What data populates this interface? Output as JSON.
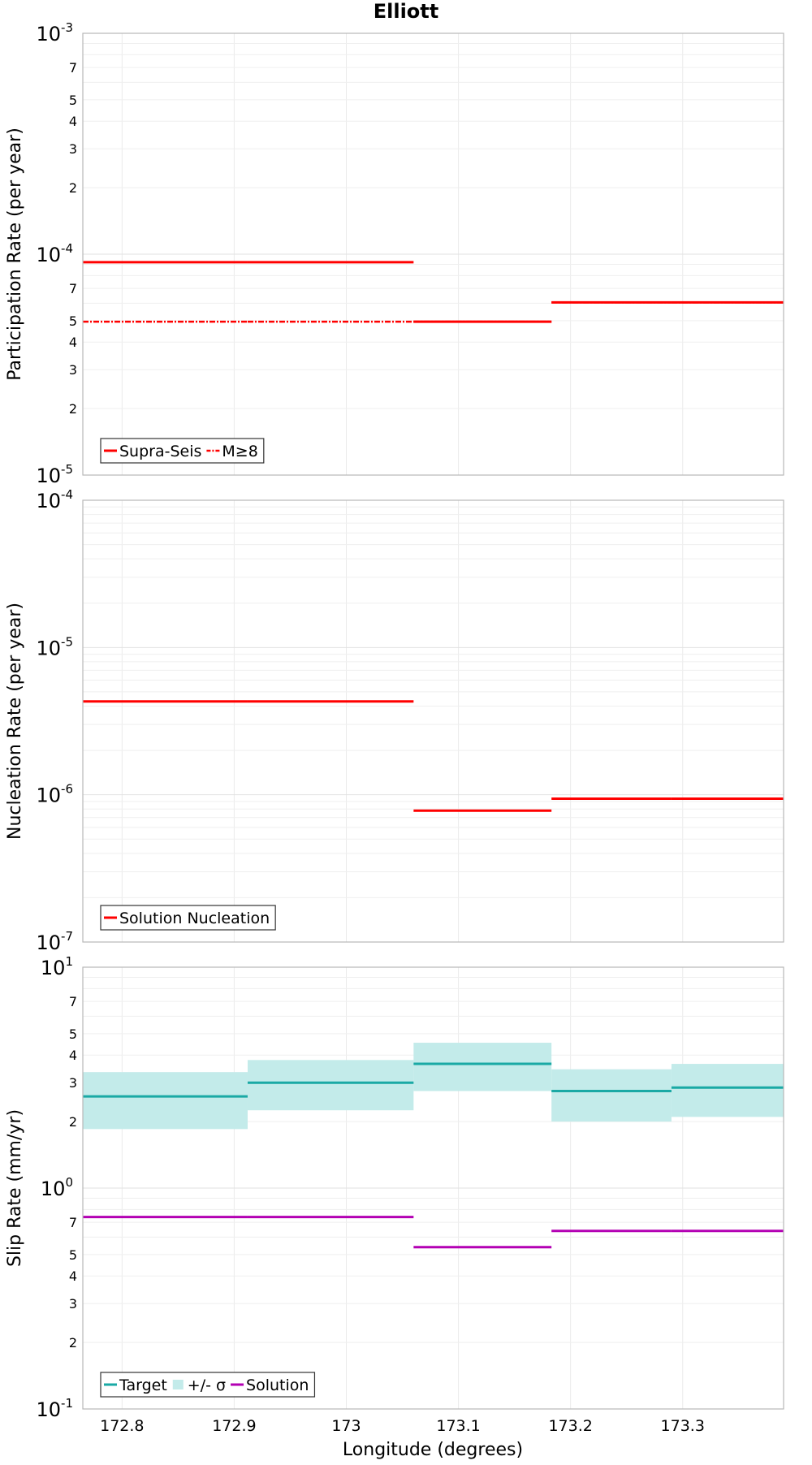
{
  "chart_data": {
    "title": "Elliott",
    "xlabel": "Longitude (degrees)",
    "xlim": [
      172.765,
      173.39
    ],
    "x_ticks": [
      "172.8",
      "172.9",
      "173",
      "173.1",
      "173.2",
      "173.3"
    ],
    "x_tick_values": [
      172.8,
      172.9,
      173.0,
      173.1,
      173.2,
      173.3
    ],
    "grid": true,
    "legend_position": "bottom-left",
    "panels": [
      {
        "type": "line",
        "ylabel": "Participation Rate (per year)",
        "yscale": "log",
        "ylim": [
          1e-05,
          0.001
        ],
        "y_major_ticks": [
          {
            "base": "10",
            "exp": "-5",
            "value": 1e-05
          },
          {
            "base": "10",
            "exp": "-4",
            "value": 0.0001
          },
          {
            "base": "10",
            "exp": "-3",
            "value": 0.001
          }
        ],
        "y_minor_labels": [
          "2",
          "3",
          "4",
          "5",
          "7"
        ],
        "series": [
          {
            "name": "Supra-Seis",
            "style": "solid",
            "color": "#ff0000",
            "segments": [
              {
                "x0": 172.765,
                "x1": 172.912,
                "y": 9.2e-05
              },
              {
                "x0": 172.912,
                "x1": 173.06,
                "y": 9.2e-05
              },
              {
                "x0": 173.06,
                "x1": 173.183,
                "y": 4.95e-05
              },
              {
                "x0": 173.183,
                "x1": 173.29,
                "y": 6.05e-05
              },
              {
                "x0": 173.29,
                "x1": 173.39,
                "y": 6.05e-05
              }
            ]
          },
          {
            "name": "M≥8",
            "style": "dash-dot",
            "color": "#ff0000",
            "segments": [
              {
                "x0": 172.765,
                "x1": 172.912,
                "y": 4.95e-05
              },
              {
                "x0": 172.912,
                "x1": 173.06,
                "y": 4.95e-05
              },
              {
                "x0": 173.06,
                "x1": 173.183,
                "y": 4.95e-05
              },
              {
                "x0": 173.183,
                "x1": 173.29,
                "y": 6.05e-05
              },
              {
                "x0": 173.29,
                "x1": 173.39,
                "y": 6.05e-05
              }
            ]
          }
        ]
      },
      {
        "type": "line",
        "ylabel": "Nucleation Rate (per year)",
        "yscale": "log",
        "ylim": [
          1e-07,
          0.0001
        ],
        "y_major_ticks": [
          {
            "base": "10",
            "exp": "-7",
            "value": 1e-07
          },
          {
            "base": "10",
            "exp": "-6",
            "value": 1e-06
          },
          {
            "base": "10",
            "exp": "-5",
            "value": 1e-05
          },
          {
            "base": "10",
            "exp": "-4",
            "value": 0.0001
          }
        ],
        "y_minor_labels": [],
        "series": [
          {
            "name": "Solution Nucleation",
            "style": "solid",
            "color": "#ff0000",
            "segments": [
              {
                "x0": 172.765,
                "x1": 172.912,
                "y": 4.3e-06
              },
              {
                "x0": 172.912,
                "x1": 173.06,
                "y": 4.3e-06
              },
              {
                "x0": 173.06,
                "x1": 173.183,
                "y": 7.8e-07
              },
              {
                "x0": 173.183,
                "x1": 173.29,
                "y": 9.4e-07
              },
              {
                "x0": 173.29,
                "x1": 173.39,
                "y": 9.4e-07
              }
            ]
          }
        ]
      },
      {
        "type": "line",
        "ylabel": "Slip Rate (mm/yr)",
        "yscale": "log",
        "ylim": [
          0.1,
          10
        ],
        "y_major_ticks": [
          {
            "base": "10",
            "exp": "-1",
            "value": 0.1
          },
          {
            "base": "10",
            "exp": "0",
            "value": 1
          },
          {
            "base": "10",
            "exp": "1",
            "value": 10
          }
        ],
        "y_minor_labels": [
          "2",
          "3",
          "4",
          "5",
          "7"
        ],
        "bands": [
          {
            "name": "+/- σ",
            "color": "#c3ebea",
            "segments": [
              {
                "x0": 172.765,
                "x1": 172.912,
                "low": 1.85,
                "high": 3.35
              },
              {
                "x0": 172.912,
                "x1": 173.06,
                "low": 2.25,
                "high": 3.8
              },
              {
                "x0": 173.06,
                "x1": 173.183,
                "low": 2.75,
                "high": 4.55
              },
              {
                "x0": 173.183,
                "x1": 173.29,
                "low": 2.0,
                "high": 3.45
              },
              {
                "x0": 173.29,
                "x1": 173.39,
                "low": 2.1,
                "high": 3.65
              }
            ]
          }
        ],
        "series": [
          {
            "name": "Target",
            "style": "solid",
            "color": "#1aa9a5",
            "segments": [
              {
                "x0": 172.765,
                "x1": 172.912,
                "y": 2.6
              },
              {
                "x0": 172.912,
                "x1": 173.06,
                "y": 3.0
              },
              {
                "x0": 173.06,
                "x1": 173.183,
                "y": 3.65
              },
              {
                "x0": 173.183,
                "x1": 173.29,
                "y": 2.75
              },
              {
                "x0": 173.29,
                "x1": 173.39,
                "y": 2.85
              }
            ]
          },
          {
            "name": "Solution",
            "style": "solid",
            "color": "#b300b3",
            "segments": [
              {
                "x0": 172.765,
                "x1": 172.912,
                "y": 0.74
              },
              {
                "x0": 172.912,
                "x1": 173.06,
                "y": 0.74
              },
              {
                "x0": 173.06,
                "x1": 173.183,
                "y": 0.54
              },
              {
                "x0": 173.183,
                "x1": 173.29,
                "y": 0.64
              },
              {
                "x0": 173.29,
                "x1": 173.39,
                "y": 0.64
              }
            ]
          }
        ]
      }
    ]
  }
}
